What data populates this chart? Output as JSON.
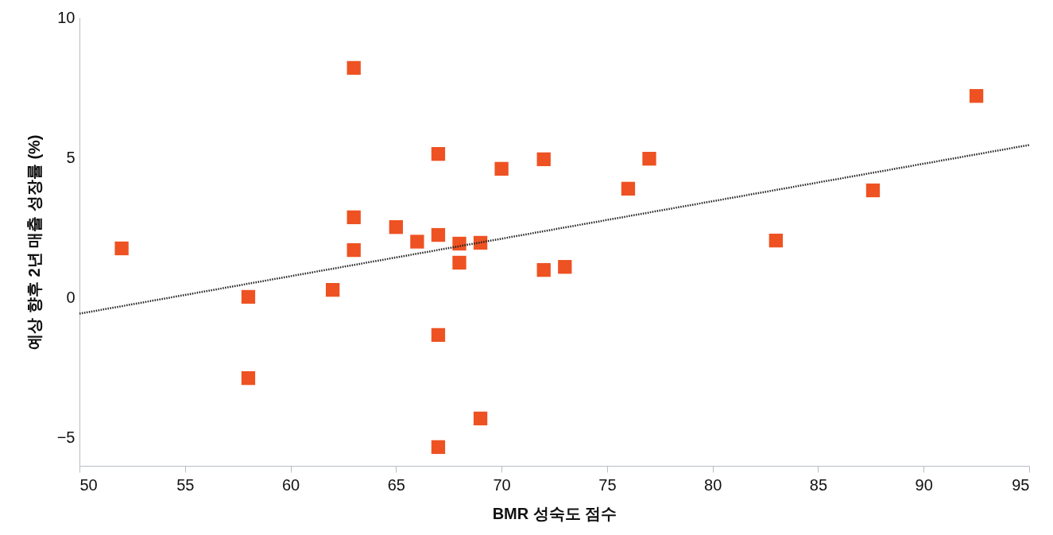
{
  "chart_data": {
    "type": "scatter",
    "xlabel": "BMR 성숙도 점수",
    "ylabel": "예상 향후 2년 매출 성장률 (%)",
    "xlim": [
      50,
      95
    ],
    "xticks": [
      50,
      55,
      60,
      65,
      70,
      75,
      80,
      85,
      90,
      95
    ],
    "ylim": [
      -6,
      10
    ],
    "yticks": [
      -5,
      0,
      5,
      10
    ],
    "grid": false,
    "series": [
      {
        "marker": "square",
        "color": "#ee5222",
        "x": [
          52,
          58,
          58,
          62,
          63,
          63,
          63,
          65,
          66,
          67,
          67,
          67,
          67,
          68,
          68,
          69,
          69,
          70,
          72,
          72,
          73,
          76,
          77,
          83,
          87.6,
          92.5
        ],
        "values": [
          1.76,
          0.03,
          -2.87,
          0.28,
          8.2,
          2.87,
          1.7,
          2.52,
          2.0,
          5.13,
          2.24,
          -1.33,
          -5.33,
          1.93,
          1.25,
          1.96,
          -4.31,
          4.6,
          4.94,
          0.99,
          1.1,
          3.89,
          4.96,
          2.04,
          3.83,
          7.2
        ]
      },
      {
        "type": "line",
        "line_style": "dotted",
        "color": "#222222",
        "x": [
          50,
          95
        ],
        "values": [
          -0.57,
          5.45
        ]
      }
    ]
  }
}
